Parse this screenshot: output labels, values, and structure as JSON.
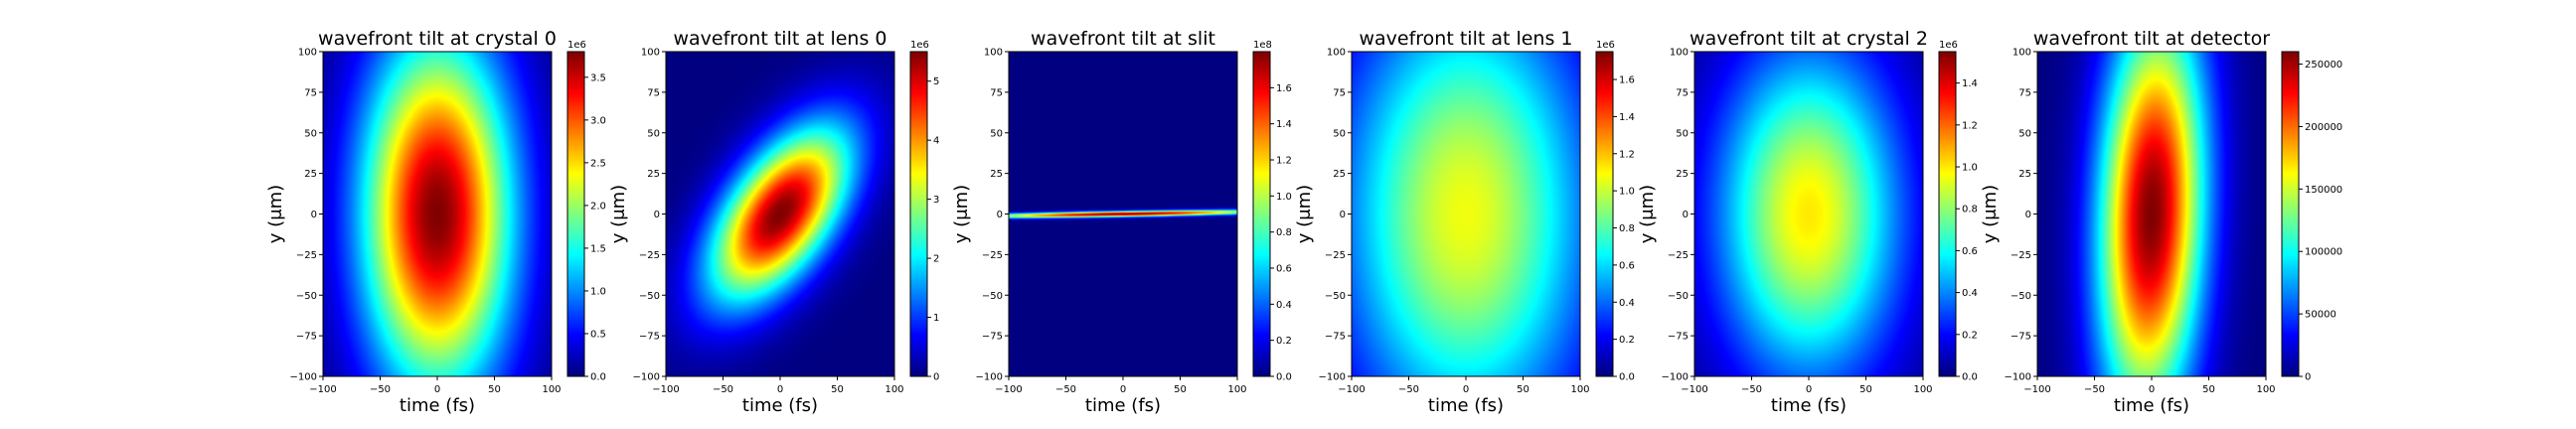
{
  "chart_data": [
    {
      "type": "heatmap",
      "title": "wavefront tilt at crystal 0",
      "xlabel": "time (fs)",
      "ylabel": "y (μm)",
      "xlim": [
        -100,
        100
      ],
      "ylim": [
        -100,
        100
      ],
      "xticks": [
        -100,
        -50,
        0,
        50,
        100
      ],
      "yticks": [
        -100,
        -75,
        -50,
        -25,
        0,
        25,
        50,
        75,
        100
      ],
      "colormap": "jet",
      "colorbar": {
        "min": 0,
        "max": 3.8,
        "ticks": [
          "0.0",
          "0.5",
          "1.0",
          "1.5",
          "2.0",
          "2.5",
          "3.0",
          "3.5"
        ],
        "tick_values": [
          0,
          0.5,
          1.0,
          1.5,
          2.0,
          2.5,
          3.0,
          3.5
        ],
        "offset": "1e6"
      },
      "distribution": {
        "shape": "gaussian",
        "center_x": 0,
        "center_y": 0,
        "sigma_x": 45,
        "sigma_y": 75,
        "tilt": 0
      }
    },
    {
      "type": "heatmap",
      "title": "wavefront tilt at lens 0",
      "xlabel": "time (fs)",
      "ylabel": "y (μm)",
      "xlim": [
        -100,
        100
      ],
      "ylim": [
        -100,
        100
      ],
      "xticks": [
        -100,
        -50,
        0,
        50,
        100
      ],
      "yticks": [
        -100,
        -75,
        -50,
        -25,
        0,
        25,
        50,
        75,
        100
      ],
      "colormap": "jet",
      "colorbar": {
        "min": 0,
        "max": 5.5,
        "ticks": [
          "0",
          "1",
          "2",
          "3",
          "4",
          "5"
        ],
        "tick_values": [
          0,
          1,
          2,
          3,
          4,
          5
        ],
        "offset": "1e6"
      },
      "distribution": {
        "shape": "gaussian",
        "center_x": 0,
        "center_y": 0,
        "sigma_x": 42,
        "sigma_y": 30,
        "tilt": 0.5
      }
    },
    {
      "type": "heatmap",
      "title": "wavefront tilt at slit",
      "xlabel": "time (fs)",
      "ylabel": "y (μm)",
      "xlim": [
        -100,
        100
      ],
      "ylim": [
        -100,
        100
      ],
      "xticks": [
        -100,
        -50,
        0,
        50,
        100
      ],
      "yticks": [
        -100,
        -75,
        -50,
        -25,
        0,
        25,
        50,
        75,
        100
      ],
      "colormap": "jet",
      "colorbar": {
        "min": 0,
        "max": 1.8,
        "ticks": [
          "0.0",
          "0.2",
          "0.4",
          "0.6",
          "0.8",
          "1.0",
          "1.2",
          "1.4",
          "1.6"
        ],
        "tick_values": [
          0,
          0.2,
          0.4,
          0.6,
          0.8,
          1.0,
          1.2,
          1.4,
          1.6
        ],
        "offset": "1e8"
      },
      "distribution": {
        "shape": "gaussian",
        "center_x": 0,
        "center_y": 0,
        "sigma_x": 90,
        "sigma_y": 1.2,
        "tilt": 0.012
      }
    },
    {
      "type": "heatmap",
      "title": "wavefront tilt at lens 1",
      "xlabel": "time (fs)",
      "ylabel": "y (μm)",
      "xlim": [
        -100,
        100
      ],
      "ylim": [
        -100,
        100
      ],
      "xticks": [
        -100,
        -50,
        0,
        50,
        100
      ],
      "yticks": [
        -100,
        -75,
        -50,
        -25,
        0,
        25,
        50,
        75,
        100
      ],
      "colormap": "jet",
      "colorbar": {
        "min": 0,
        "max": 1.75,
        "ticks": [
          "0.0",
          "0.2",
          "0.4",
          "0.6",
          "0.8",
          "1.0",
          "1.2",
          "1.4",
          "1.6"
        ],
        "tick_values": [
          0,
          0.2,
          0.4,
          0.6,
          0.8,
          1.0,
          1.2,
          1.4,
          1.6
        ],
        "offset": "1e6",
        "data_max": 1.07
      },
      "distribution": {
        "shape": "gaussian",
        "center_x": 0,
        "center_y": 0,
        "sigma_x": 75,
        "sigma_y": 95,
        "tilt": 0
      }
    },
    {
      "type": "heatmap",
      "title": "wavefront tilt at crystal 2",
      "xlabel": "time (fs)",
      "ylabel": "y (μm)",
      "xlim": [
        -100,
        100
      ],
      "ylim": [
        -100,
        100
      ],
      "xticks": [
        -100,
        -50,
        0,
        50,
        100
      ],
      "yticks": [
        -100,
        -75,
        -50,
        -25,
        0,
        25,
        50,
        75,
        100
      ],
      "colormap": "jet",
      "colorbar": {
        "min": 0,
        "max": 1.55,
        "ticks": [
          "0.0",
          "0.2",
          "0.4",
          "0.6",
          "0.8",
          "1.0",
          "1.2",
          "1.4"
        ],
        "tick_values": [
          0,
          0.2,
          0.4,
          0.6,
          0.8,
          1.0,
          1.2,
          1.4
        ],
        "offset": "1e6",
        "data_max": 1.0
      },
      "distribution": {
        "shape": "gaussian",
        "center_x": 0,
        "center_y": 0,
        "sigma_x": 55,
        "sigma_y": 70,
        "tilt": 0
      }
    },
    {
      "type": "heatmap",
      "title": "wavefront tilt at detector",
      "xlabel": "time (fs)",
      "ylabel": "y (μm)",
      "xlim": [
        -100,
        100
      ],
      "ylim": [
        -100,
        100
      ],
      "xticks": [
        -100,
        -50,
        0,
        50,
        100
      ],
      "yticks": [
        -100,
        -75,
        -50,
        -25,
        0,
        25,
        50,
        75,
        100
      ],
      "colormap": "jet",
      "colorbar": {
        "min": 0,
        "max": 260000,
        "ticks": [
          "0",
          "50000",
          "100000",
          "150000",
          "200000",
          "250000"
        ],
        "tick_values": [
          0,
          50000,
          100000,
          150000,
          200000,
          250000
        ],
        "offset": ""
      },
      "distribution": {
        "shape": "gaussian",
        "center_x": 0,
        "center_y": 0,
        "sigma_x": 32,
        "sigma_y": 85,
        "tilt": 0.38
      }
    }
  ]
}
